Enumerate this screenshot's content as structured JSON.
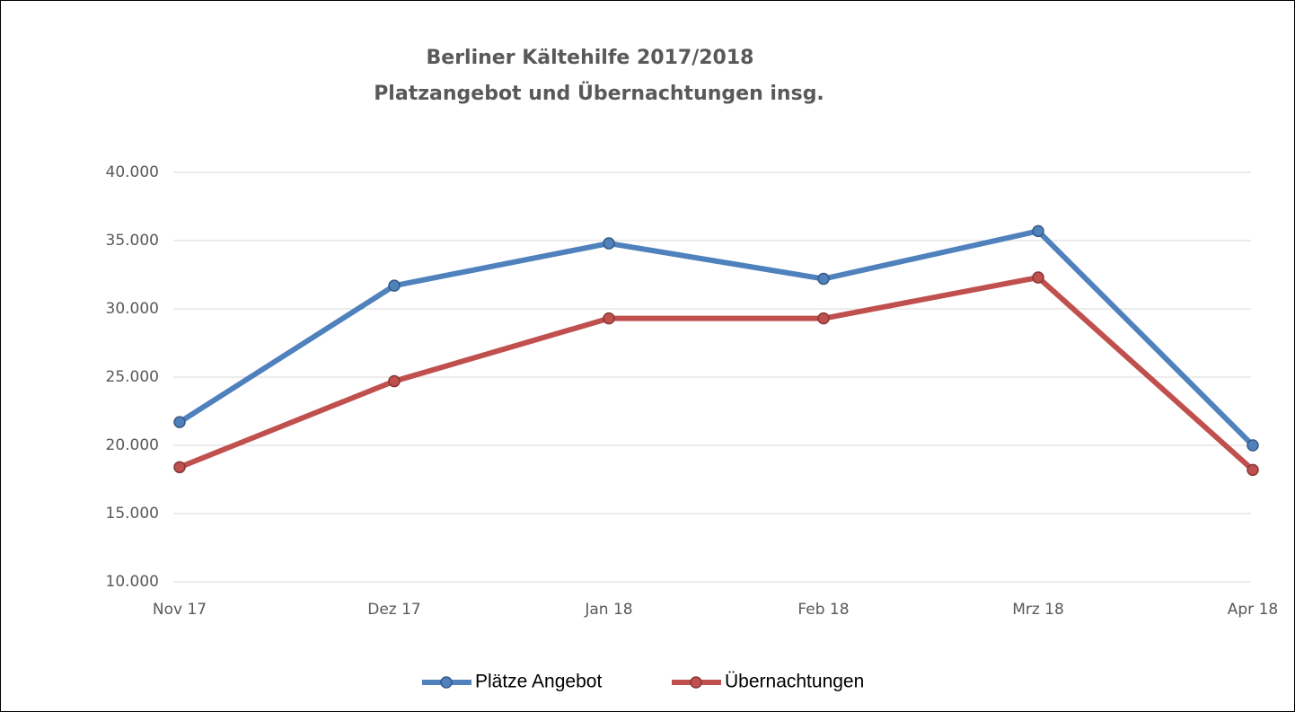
{
  "chart_data": {
    "type": "line",
    "title": [
      "Berliner Kältehilfe 2017/2018",
      "Platzangebot und Übernachtungen insg."
    ],
    "categories": [
      "Nov 17",
      "Dez 17",
      "Jan 18",
      "Feb 18",
      "Mrz 18",
      "Apr 18"
    ],
    "series": [
      {
        "name": "Plätze Angebot",
        "color": "#4f81bd",
        "values": [
          21700,
          31700,
          34800,
          32200,
          35700,
          20000
        ]
      },
      {
        "name": "Übernachtungen",
        "color": "#c0504d",
        "values": [
          18400,
          24700,
          29300,
          29300,
          32300,
          18200
        ]
      }
    ],
    "ylim": [
      10000,
      40000
    ],
    "yticks": [
      {
        "value": 10000,
        "label": "10.000"
      },
      {
        "value": 15000,
        "label": "15.000"
      },
      {
        "value": 20000,
        "label": "20.000"
      },
      {
        "value": 25000,
        "label": "25.000"
      },
      {
        "value": 30000,
        "label": "30.000"
      },
      {
        "value": 35000,
        "label": "35.000"
      },
      {
        "value": 40000,
        "label": "40.000"
      }
    ],
    "grid": true,
    "legend": "bottom"
  }
}
